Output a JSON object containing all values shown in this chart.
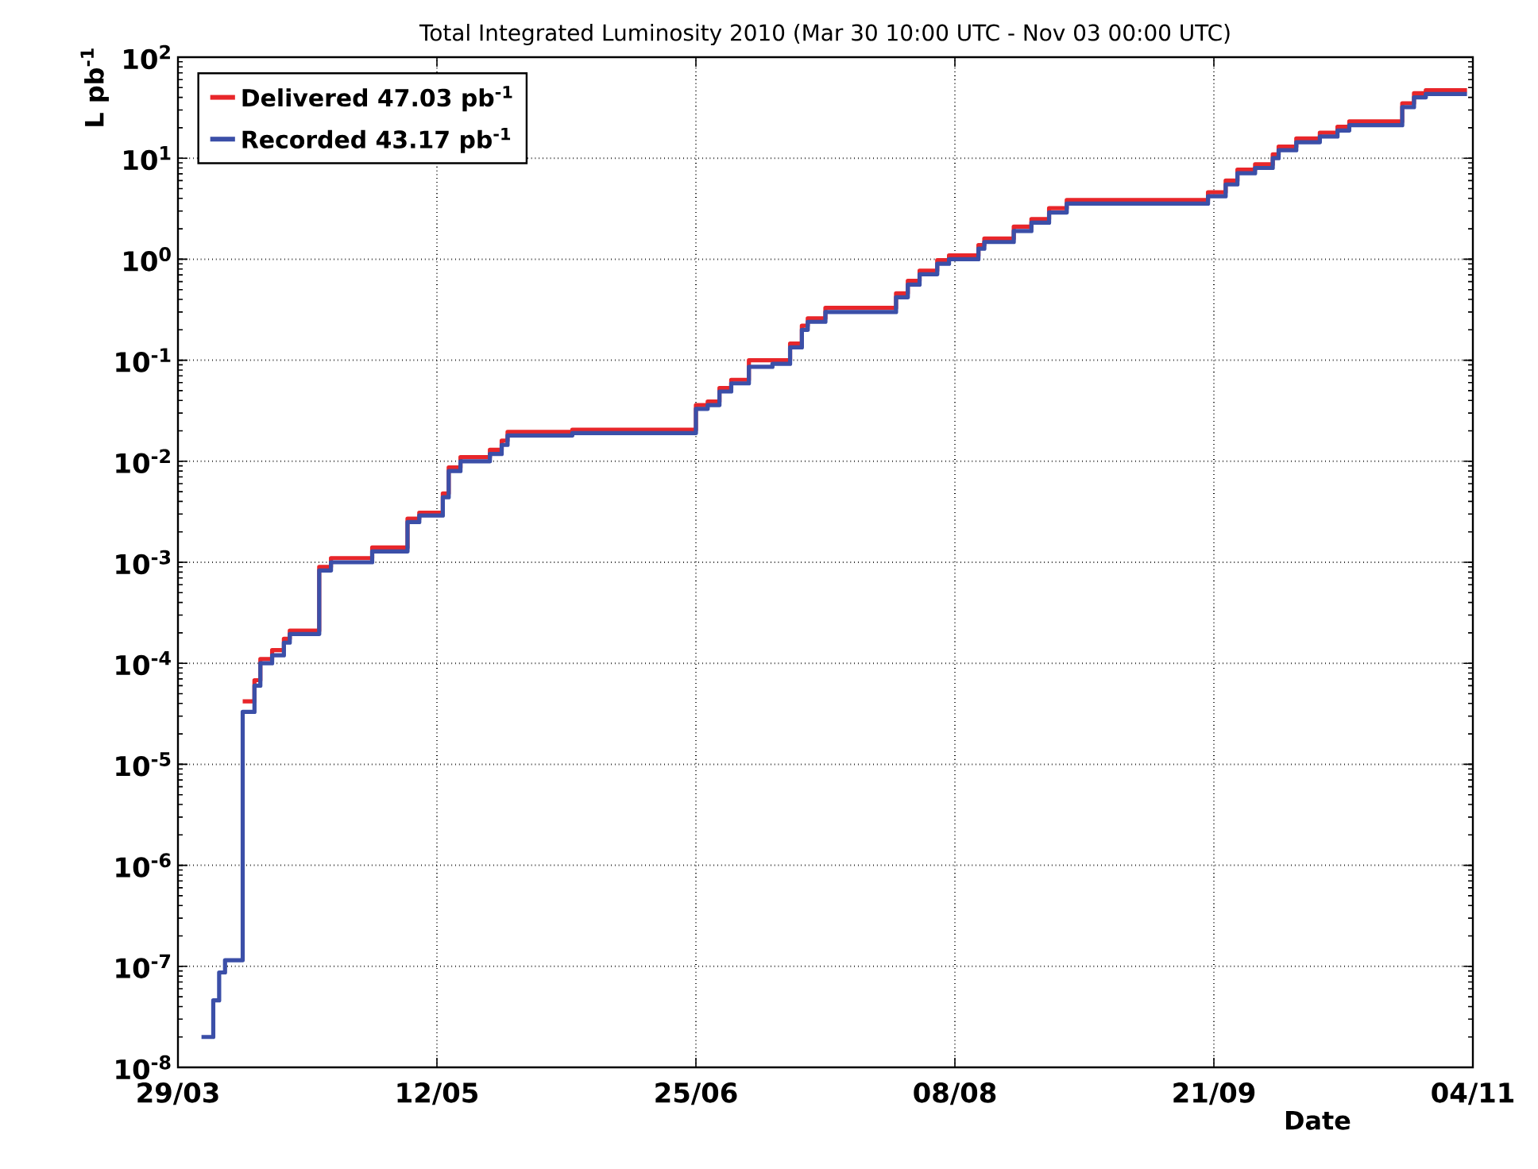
{
  "chart_data": {
    "type": "step",
    "title": "Total Integrated Luminosity 2010 (Mar 30 10:00 UTC - Nov 03 00:00 UTC)",
    "xlabel": "Date",
    "ylabel": "L pb$^{-1}$",
    "x": [
      "2010-04-02",
      "2010-04-04",
      "2010-04-05",
      "2010-04-06",
      "2010-04-09",
      "2010-04-11",
      "2010-04-12",
      "2010-04-14",
      "2010-04-16",
      "2010-04-17",
      "2010-04-22",
      "2010-04-24",
      "2010-05-01",
      "2010-05-07",
      "2010-05-09",
      "2010-05-13",
      "2010-05-14",
      "2010-05-16",
      "2010-05-21",
      "2010-05-23",
      "2010-05-24",
      "2010-06-04",
      "2010-06-25",
      "2010-06-27",
      "2010-06-29",
      "2010-07-01",
      "2010-07-04",
      "2010-07-08",
      "2010-07-11",
      "2010-07-13",
      "2010-07-14",
      "2010-07-17",
      "2010-07-29",
      "2010-07-31",
      "2010-08-02",
      "2010-08-05",
      "2010-08-07",
      "2010-08-12",
      "2010-08-13",
      "2010-08-18",
      "2010-08-21",
      "2010-08-24",
      "2010-08-27",
      "2010-09-20",
      "2010-09-23",
      "2010-09-25",
      "2010-09-28",
      "2010-10-01",
      "2010-10-02",
      "2010-10-05",
      "2010-10-09",
      "2010-10-12",
      "2010-10-14",
      "2010-10-23",
      "2010-10-25",
      "2010-10-27",
      "2010-11-03"
    ],
    "series": [
      {
        "name": "Delivered 47.03 pb$^{-1}$",
        "color": "#e8262a",
        "values": [
          null,
          null,
          null,
          null,
          4.2e-05,
          6.8e-05,
          0.00011,
          0.000135,
          0.000175,
          0.00021,
          0.0009,
          0.0011,
          0.0014,
          0.0027,
          0.0031,
          0.0048,
          0.0087,
          0.011,
          0.013,
          0.016,
          0.0195,
          0.0205,
          0.036,
          0.039,
          0.053,
          0.064,
          0.1,
          0.1,
          0.146,
          0.22,
          0.26,
          0.33,
          0.46,
          0.61,
          0.77,
          0.98,
          1.09,
          1.38,
          1.6,
          2.1,
          2.5,
          3.2,
          3.85,
          4.6,
          6.0,
          7.7,
          8.7,
          10.9,
          13,
          15.7,
          17.9,
          20.5,
          23.1,
          35,
          44,
          47.03,
          47.03
        ]
      },
      {
        "name": "Recorded 43.17 pb$^{-1}$",
        "color": "#3b4fa8",
        "values": [
          2e-08,
          4.6e-08,
          8.7e-08,
          1.15e-07,
          3.3e-05,
          6e-05,
          0.0001,
          0.00012,
          0.00016,
          0.000195,
          0.00083,
          0.001,
          0.00128,
          0.0025,
          0.0029,
          0.0044,
          0.008,
          0.01,
          0.0118,
          0.0145,
          0.018,
          0.019,
          0.033,
          0.036,
          0.049,
          0.059,
          0.086,
          0.092,
          0.134,
          0.2,
          0.24,
          0.3,
          0.42,
          0.56,
          0.71,
          0.9,
          1.0,
          1.27,
          1.48,
          1.9,
          2.3,
          2.9,
          3.55,
          4.2,
          5.5,
          7.1,
          8.0,
          10,
          12,
          14.4,
          16.4,
          18.8,
          21.2,
          32,
          40,
          43.17,
          43.17
        ]
      }
    ],
    "xlim": [
      "2010-03-29",
      "2010-11-04"
    ],
    "xticks": [
      {
        "value": "2010-03-29",
        "label": "29/03"
      },
      {
        "value": "2010-05-12",
        "label": "12/05"
      },
      {
        "value": "2010-06-25",
        "label": "25/06"
      },
      {
        "value": "2010-08-08",
        "label": "08/08"
      },
      {
        "value": "2010-09-21",
        "label": "21/09"
      },
      {
        "value": "2010-11-04",
        "label": "04/11"
      }
    ],
    "ylim": [
      1e-08,
      100
    ],
    "yticks": [
      {
        "value": 1e-08,
        "label": "10$^{-8}$"
      },
      {
        "value": 1e-07,
        "label": "10$^{-7}$"
      },
      {
        "value": 1e-06,
        "label": "10$^{-6}$"
      },
      {
        "value": 1e-05,
        "label": "10$^{-5}$"
      },
      {
        "value": 0.0001,
        "label": "10$^{-4}$"
      },
      {
        "value": 0.001,
        "label": "10$^{-3}$"
      },
      {
        "value": 0.01,
        "label": "10$^{-2}$"
      },
      {
        "value": 0.1,
        "label": "10$^{-1}$"
      },
      {
        "value": 1,
        "label": "10$^{0}$"
      },
      {
        "value": 10,
        "label": "10$^{1}$"
      },
      {
        "value": 100,
        "label": "10$^{2}$"
      }
    ],
    "log": true,
    "grid": true,
    "legend": "top left"
  }
}
